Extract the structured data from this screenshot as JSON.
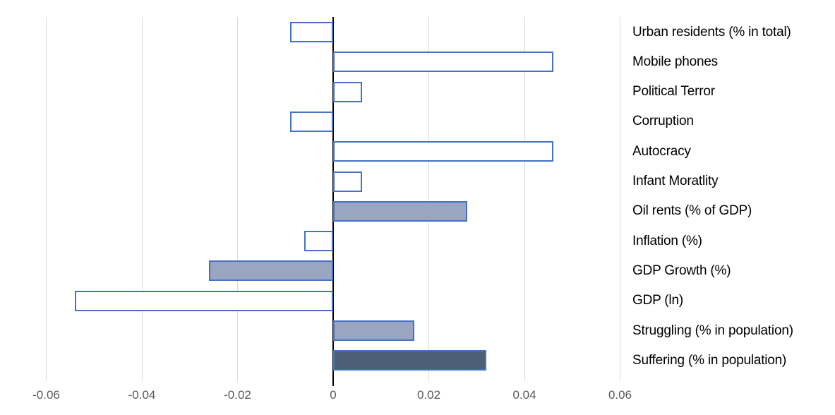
{
  "chart_data": {
    "type": "bar",
    "orientation": "horizontal",
    "title": "",
    "xlabel": "",
    "ylabel": "",
    "legend": "none",
    "grid": true,
    "xlim": [
      -0.06,
      0.06
    ],
    "xticks": [
      -0.06,
      -0.04,
      -0.02,
      0,
      0.02,
      0.04,
      0.06
    ],
    "xtick_labels": [
      "-0.06",
      "-0.04",
      "-0.02",
      "0",
      "0.02",
      "0.04",
      "0.06"
    ],
    "categories": [
      "Urban residents (% in total)",
      "Mobile phones",
      "Political Terror",
      "Corruption",
      "Autocracy",
      "Infant Moratlity",
      "Oil rents (% of GDP)",
      "Inflation (%)",
      "GDP Growth (%)",
      "GDP (ln)",
      "Struggling (% in population)",
      "Suffering (% in population)"
    ],
    "values": [
      -0.009,
      0.046,
      0.006,
      -0.009,
      0.046,
      0.006,
      0.028,
      -0.006,
      -0.026,
      -0.054,
      0.017,
      0.032
    ],
    "bar_styles": [
      "outline",
      "outline",
      "outline",
      "outline",
      "outline",
      "outline",
      "filled-light",
      "outline",
      "filled-light",
      "outline",
      "filled-light",
      "filled-dark"
    ]
  },
  "colors": {
    "bar_border": "#4472C4",
    "fill_outline": "#FFFFFF",
    "fill_light": "#9AA5C1",
    "fill_dark": "#4D5F77",
    "gridline": "#D9D9D9",
    "axis_line": "#000000",
    "tick_label": "#595959",
    "category_label": "#000000",
    "background": "#FFFFFF"
  }
}
